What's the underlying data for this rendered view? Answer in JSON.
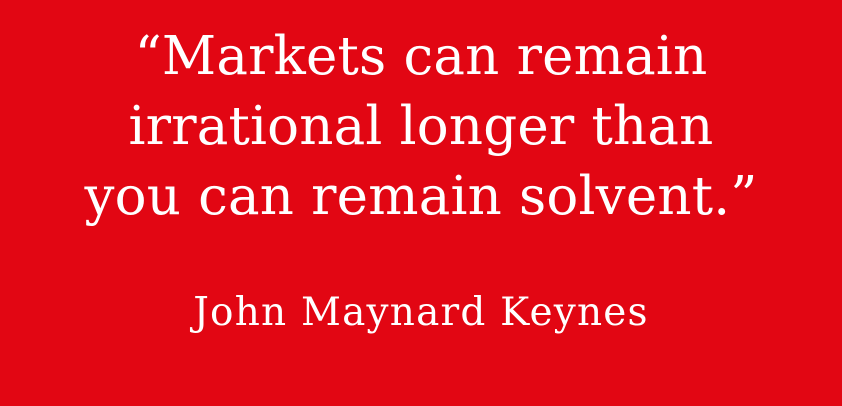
{
  "quote": {
    "lines": [
      "“Markets can remain",
      "irrational longer than",
      "you can remain solvent.”"
    ]
  },
  "author": "John Maynard Keynes",
  "colors": {
    "background": "#E20613",
    "text": "#FFFFFF"
  }
}
